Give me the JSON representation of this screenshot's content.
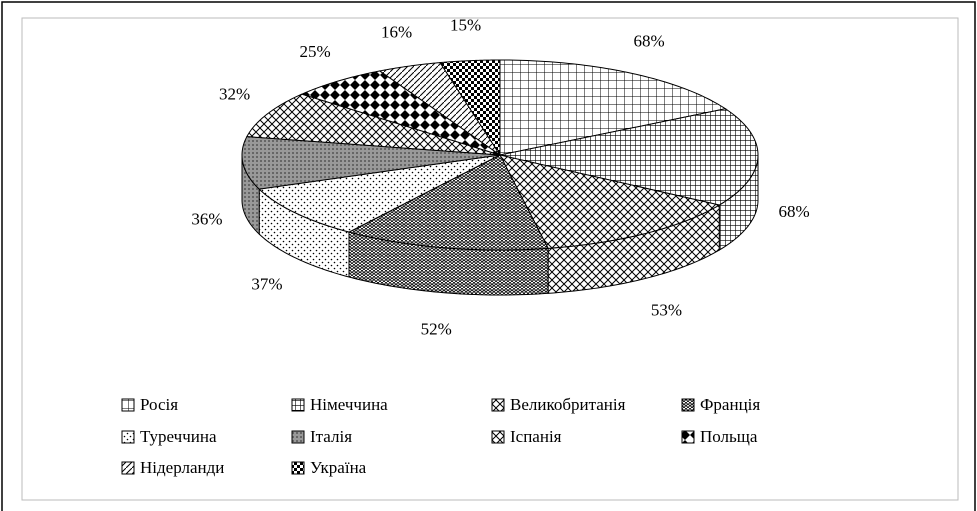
{
  "chart_data": {
    "type": "pie3d",
    "categories": [
      "Росія",
      "Німеччина",
      "Великобританія",
      "Франція",
      "Туреччина",
      "Італія",
      "Іспанія",
      "Польща",
      "Нідерланди",
      "Україна"
    ],
    "values": [
      68,
      68,
      53,
      52,
      37,
      36,
      32,
      25,
      16,
      15
    ],
    "value_labels": [
      "68%",
      "68%",
      "53%",
      "52%",
      "37%",
      "36%",
      "32%",
      "25%",
      "16%",
      "15%"
    ],
    "legend": "bottom"
  }
}
